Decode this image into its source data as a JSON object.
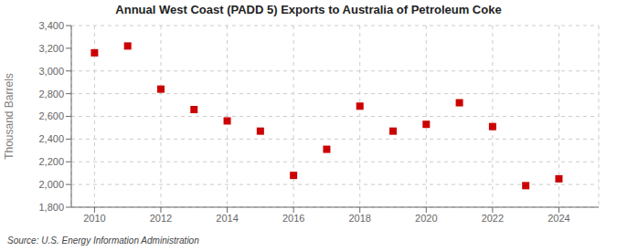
{
  "chart_data": {
    "type": "scatter",
    "title": "Annual West Coast (PADD 5) Exports to Australia of Petroleum Coke",
    "ylabel": "Thousand Barrels",
    "annotation": "Source: U.S. Energy Information Administration",
    "x": [
      2010,
      2011,
      2012,
      2013,
      2014,
      2015,
      2016,
      2017,
      2018,
      2019,
      2020,
      2021,
      2022,
      2023,
      2024
    ],
    "values": [
      3160,
      3220,
      2840,
      2660,
      2560,
      2470,
      2080,
      2310,
      2690,
      2470,
      2530,
      2720,
      2510,
      1990,
      2050
    ],
    "color": "#cc0000",
    "marker": "square",
    "xlim": [
      2009.3,
      2025.2
    ],
    "ylim": [
      1800,
      3400
    ],
    "xticks": [
      2010,
      2012,
      2014,
      2016,
      2018,
      2020,
      2022,
      2024
    ],
    "yticks": [
      {
        "value": 1800,
        "label": "1,800"
      },
      {
        "value": 2000,
        "label": "2,000"
      },
      {
        "value": 2200,
        "label": "2,200"
      },
      {
        "value": 2400,
        "label": "2,400"
      },
      {
        "value": 2600,
        "label": "2,600"
      },
      {
        "value": 2800,
        "label": "2,800"
      },
      {
        "value": 3000,
        "label": "3,000"
      },
      {
        "value": 3200,
        "label": "3,200"
      },
      {
        "value": 3400,
        "label": "3,400"
      }
    ],
    "grid": true
  }
}
